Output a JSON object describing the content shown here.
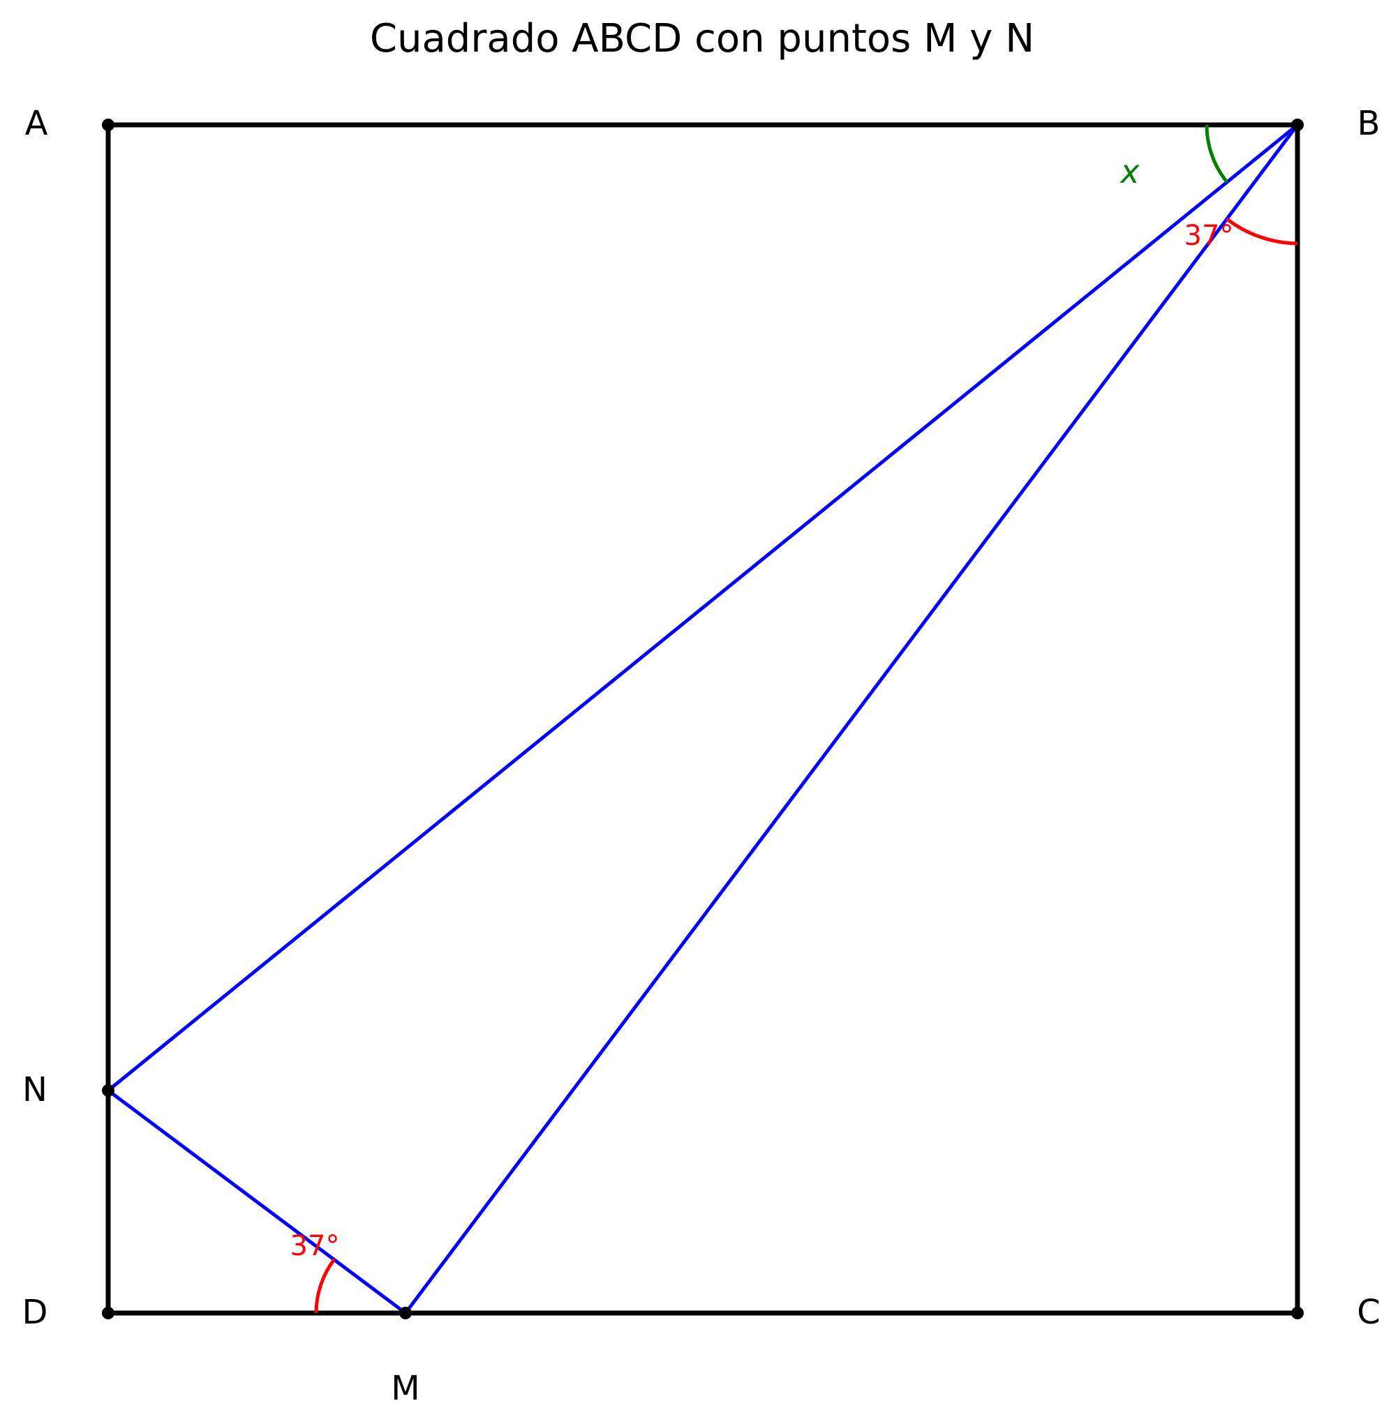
{
  "title": "Cuadrado ABCD con puntos M y N",
  "vertices": {
    "A": "A",
    "B": "B",
    "C": "C",
    "D": "D",
    "M": "M",
    "N": "N"
  },
  "angles": {
    "at_B": "37°",
    "at_M": "37°",
    "unknown": "x"
  },
  "colors": {
    "square": "#000000",
    "triangle": "#0000ff",
    "given_angle": "#ff0000",
    "unknown_angle": "#008000"
  }
}
